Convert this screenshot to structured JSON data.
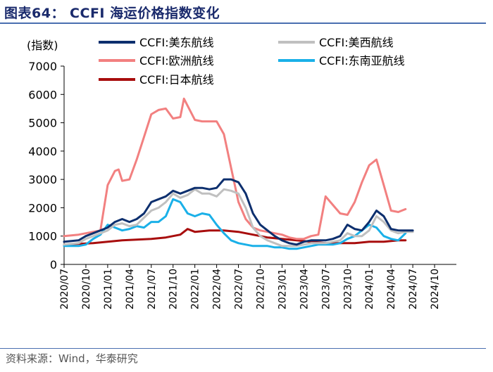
{
  "header": {
    "title": "图表64： CCFI 海运价格指数变化"
  },
  "footer": {
    "source": "资料来源：Wind，华泰研究"
  },
  "chart_data": {
    "type": "line",
    "title": "CCFI 海运价格指数变化",
    "ylabel": "(指数)",
    "xlabel": "",
    "ylim": [
      0,
      7000
    ],
    "yticks": [
      0,
      1000,
      2000,
      3000,
      4000,
      5000,
      6000,
      7000
    ],
    "xlim": [
      "2020/07",
      "2024/12"
    ],
    "xticks": [
      "2020/07",
      "2020/10",
      "2021/01",
      "2021/04",
      "2021/07",
      "2021/10",
      "2022/01",
      "2022/04",
      "2022/07",
      "2022/10",
      "2023/01",
      "2023/04",
      "2023/07",
      "2023/10",
      "2024/01",
      "2024/04",
      "2024/07",
      "2024/10"
    ],
    "grid": false,
    "legend_position": "top",
    "series": [
      {
        "name": "CCFI:美东航线",
        "color": "#0d2f6e",
        "width": 3,
        "points": [
          [
            0,
            800
          ],
          [
            2,
            850
          ],
          [
            3,
            1000
          ],
          [
            4,
            1100
          ],
          [
            5,
            1200
          ],
          [
            6,
            1300
          ],
          [
            7,
            1500
          ],
          [
            8,
            1600
          ],
          [
            9,
            1500
          ],
          [
            10,
            1600
          ],
          [
            11,
            1800
          ],
          [
            12,
            2200
          ],
          [
            13,
            2300
          ],
          [
            14,
            2400
          ],
          [
            15,
            2600
          ],
          [
            16,
            2500
          ],
          [
            17,
            2600
          ],
          [
            18,
            2700
          ],
          [
            19,
            2700
          ],
          [
            20,
            2650
          ],
          [
            21,
            2700
          ],
          [
            22,
            3000
          ],
          [
            23,
            3000
          ],
          [
            24,
            2900
          ],
          [
            25,
            2500
          ],
          [
            26,
            1800
          ],
          [
            27,
            1400
          ],
          [
            28,
            1200
          ],
          [
            29,
            1000
          ],
          [
            30,
            850
          ],
          [
            31,
            750
          ],
          [
            32,
            700
          ],
          [
            33,
            800
          ],
          [
            34,
            850
          ],
          [
            35,
            850
          ],
          [
            36,
            850
          ],
          [
            37,
            900
          ],
          [
            38,
            1000
          ],
          [
            39,
            1400
          ],
          [
            40,
            1250
          ],
          [
            41,
            1200
          ],
          [
            42,
            1500
          ],
          [
            43,
            1900
          ],
          [
            44,
            1700
          ],
          [
            45,
            1250
          ],
          [
            46,
            1200
          ],
          [
            47,
            1200
          ],
          [
            48,
            1200
          ]
        ]
      },
      {
        "name": "CCFI:美西航线",
        "color": "#c0c0c0",
        "width": 3,
        "points": [
          [
            0,
            700
          ],
          [
            2,
            750
          ],
          [
            3,
            900
          ],
          [
            4,
            1000
          ],
          [
            5,
            1100
          ],
          [
            6,
            1200
          ],
          [
            7,
            1400
          ],
          [
            8,
            1450
          ],
          [
            9,
            1350
          ],
          [
            10,
            1400
          ],
          [
            11,
            1650
          ],
          [
            12,
            1900
          ],
          [
            13,
            2000
          ],
          [
            14,
            2200
          ],
          [
            15,
            2500
          ],
          [
            16,
            2350
          ],
          [
            17,
            2450
          ],
          [
            18,
            2650
          ],
          [
            19,
            2500
          ],
          [
            20,
            2500
          ],
          [
            21,
            2400
          ],
          [
            22,
            2650
          ],
          [
            23,
            2600
          ],
          [
            24,
            2500
          ],
          [
            25,
            2000
          ],
          [
            26,
            1300
          ],
          [
            27,
            1000
          ],
          [
            28,
            850
          ],
          [
            29,
            750
          ],
          [
            30,
            650
          ],
          [
            31,
            650
          ],
          [
            32,
            650
          ],
          [
            33,
            700
          ],
          [
            34,
            750
          ],
          [
            35,
            750
          ],
          [
            36,
            750
          ],
          [
            37,
            800
          ],
          [
            38,
            850
          ],
          [
            39,
            1100
          ],
          [
            40,
            1000
          ],
          [
            41,
            1000
          ],
          [
            42,
            1200
          ],
          [
            43,
            1700
          ],
          [
            44,
            1500
          ],
          [
            45,
            1200
          ],
          [
            46,
            1100
          ],
          [
            47,
            1150
          ],
          [
            48,
            1150
          ]
        ]
      },
      {
        "name": "CCFI:欧洲航线",
        "color": "#f28080",
        "width": 3,
        "points": [
          [
            0,
            1000
          ],
          [
            2,
            1050
          ],
          [
            3,
            1100
          ],
          [
            4,
            1150
          ],
          [
            5,
            1200
          ],
          [
            6,
            2800
          ],
          [
            7,
            3300
          ],
          [
            7.5,
            3350
          ],
          [
            8,
            2950
          ],
          [
            9,
            3000
          ],
          [
            10,
            3700
          ],
          [
            11,
            4500
          ],
          [
            12,
            5300
          ],
          [
            13,
            5450
          ],
          [
            14,
            5500
          ],
          [
            15,
            5150
          ],
          [
            16,
            5200
          ],
          [
            16.5,
            5850
          ],
          [
            17,
            5600
          ],
          [
            18,
            5100
          ],
          [
            19,
            5050
          ],
          [
            20,
            5050
          ],
          [
            21,
            5050
          ],
          [
            22,
            4600
          ],
          [
            23,
            3400
          ],
          [
            24,
            2200
          ],
          [
            25,
            1600
          ],
          [
            26,
            1300
          ],
          [
            27,
            1200
          ],
          [
            28,
            1150
          ],
          [
            29,
            1100
          ],
          [
            30,
            1050
          ],
          [
            31,
            950
          ],
          [
            32,
            900
          ],
          [
            33,
            900
          ],
          [
            34,
            1000
          ],
          [
            35,
            1050
          ],
          [
            36,
            2400
          ],
          [
            37,
            2100
          ],
          [
            38,
            1800
          ],
          [
            39,
            1750
          ],
          [
            40,
            2200
          ],
          [
            41,
            2900
          ],
          [
            42,
            3500
          ],
          [
            43,
            3700
          ],
          [
            44,
            2800
          ],
          [
            45,
            1900
          ],
          [
            46,
            1850
          ],
          [
            47,
            1950
          ]
        ]
      },
      {
        "name": "CCFI:东南亚航线",
        "color": "#1ab0e8",
        "width": 3,
        "points": [
          [
            0,
            650
          ],
          [
            2,
            650
          ],
          [
            3,
            700
          ],
          [
            4,
            900
          ],
          [
            5,
            1050
          ],
          [
            6,
            1400
          ],
          [
            7,
            1300
          ],
          [
            8,
            1200
          ],
          [
            9,
            1250
          ],
          [
            10,
            1350
          ],
          [
            11,
            1300
          ],
          [
            12,
            1500
          ],
          [
            13,
            1500
          ],
          [
            14,
            1700
          ],
          [
            15,
            2300
          ],
          [
            16,
            2200
          ],
          [
            17,
            1800
          ],
          [
            18,
            1700
          ],
          [
            19,
            1800
          ],
          [
            20,
            1750
          ],
          [
            21,
            1400
          ],
          [
            22,
            1100
          ],
          [
            23,
            850
          ],
          [
            24,
            750
          ],
          [
            25,
            700
          ],
          [
            26,
            650
          ],
          [
            27,
            650
          ],
          [
            28,
            650
          ],
          [
            29,
            600
          ],
          [
            30,
            600
          ],
          [
            31,
            550
          ],
          [
            32,
            550
          ],
          [
            33,
            600
          ],
          [
            34,
            650
          ],
          [
            35,
            700
          ],
          [
            36,
            700
          ],
          [
            37,
            700
          ],
          [
            38,
            750
          ],
          [
            39,
            900
          ],
          [
            40,
            1000
          ],
          [
            41,
            1200
          ],
          [
            42,
            1400
          ],
          [
            43,
            1300
          ],
          [
            44,
            1000
          ],
          [
            45,
            900
          ],
          [
            46,
            850
          ],
          [
            47,
            1100
          ]
        ]
      },
      {
        "name": "CCFI:日本航线",
        "color": "#a80d0d",
        "width": 3,
        "points": [
          [
            0,
            700
          ],
          [
            4,
            750
          ],
          [
            8,
            850
          ],
          [
            12,
            900
          ],
          [
            14,
            950
          ],
          [
            16,
            1050
          ],
          [
            17,
            1250
          ],
          [
            18,
            1150
          ],
          [
            20,
            1200
          ],
          [
            22,
            1200
          ],
          [
            24,
            1150
          ],
          [
            26,
            1050
          ],
          [
            28,
            950
          ],
          [
            30,
            900
          ],
          [
            32,
            850
          ],
          [
            34,
            800
          ],
          [
            36,
            750
          ],
          [
            38,
            750
          ],
          [
            40,
            750
          ],
          [
            42,
            800
          ],
          [
            44,
            800
          ],
          [
            46,
            850
          ],
          [
            47,
            850
          ]
        ]
      }
    ]
  }
}
